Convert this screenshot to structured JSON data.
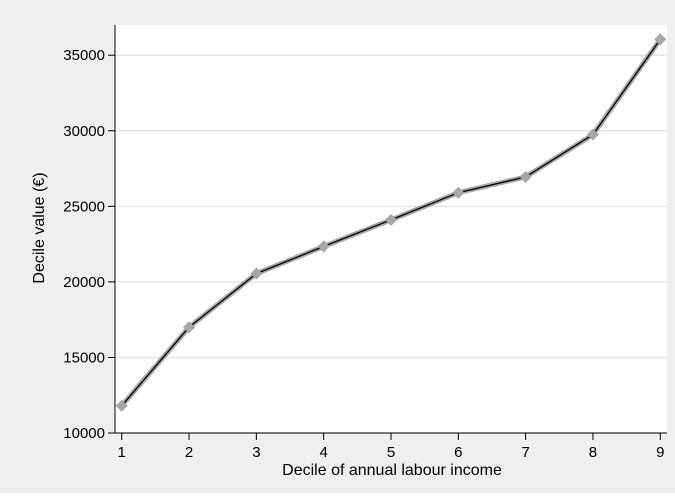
{
  "chart_data": {
    "type": "line",
    "title": "",
    "xlabel": "Decile of annual labour income",
    "ylabel": "Decile value (€)",
    "x": [
      1,
      2,
      3,
      4,
      5,
      6,
      7,
      8,
      9
    ],
    "xticks": [
      "1",
      "2",
      "3",
      "4",
      "5",
      "6",
      "7",
      "8",
      "9"
    ],
    "xlim": [
      0.9,
      9.1
    ],
    "ylim": [
      10000,
      37000
    ],
    "yticks": [
      "10000",
      "15000",
      "20000",
      "25000",
      "30000",
      "35000"
    ],
    "grid": "horizontal",
    "legend": "none",
    "series": [
      {
        "values": [
          11800,
          17000,
          20550,
          22350,
          24100,
          25900,
          26950,
          29750,
          36050
        ]
      }
    ],
    "colors": {
      "outer_background": "#efefef",
      "plot_background": "#ffffff",
      "gridline": "#e6e6e6",
      "line": "#000000",
      "line_shadow": "#a6a6a6",
      "marker": "#a6a6a6",
      "axis": "#000000"
    }
  }
}
